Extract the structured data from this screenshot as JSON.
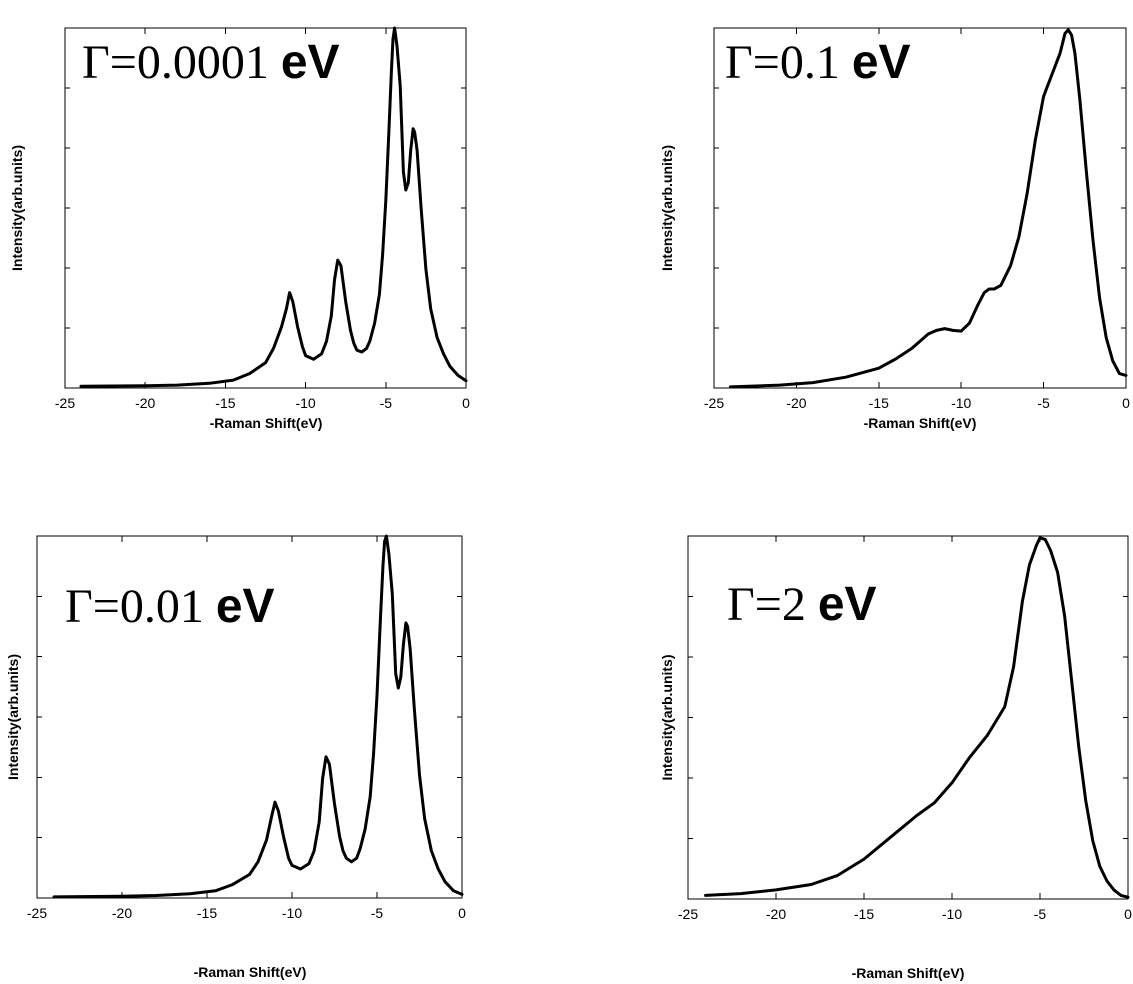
{
  "chart_data": [
    {
      "type": "line",
      "annotation": {
        "symbol": "Γ=0.0001",
        "unit": "eV"
      },
      "xlabel": "-Raman Shift(eV)",
      "ylabel": "Intensity(arb.units)",
      "xlim": [
        -25,
        0
      ],
      "ylim": [
        0,
        1
      ],
      "xticks": [
        -25,
        -20,
        -15,
        -10,
        -5,
        0
      ],
      "series": [
        {
          "x": [
            -24,
            -20,
            -18,
            -16,
            -14.5,
            -13.5,
            -12.5,
            -12,
            -11.5,
            -11.2,
            -11,
            -10.8,
            -10.5,
            -10.2,
            -10,
            -9.5,
            -9,
            -8.7,
            -8.4,
            -8.2,
            -8,
            -7.8,
            -7.5,
            -7.2,
            -7,
            -6.8,
            -6.5,
            -6.2,
            -6,
            -5.7,
            -5.4,
            -5.2,
            -5,
            -4.8,
            -4.65,
            -4.55,
            -4.45,
            -4.3,
            -4.1,
            -3.9,
            -3.75,
            -3.6,
            -3.45,
            -3.3,
            -3.2,
            -3.05,
            -2.8,
            -2.5,
            -2.2,
            -1.8,
            -1.4,
            -1,
            -0.5,
            0
          ],
          "y": [
            0.005,
            0.006,
            0.008,
            0.013,
            0.022,
            0.04,
            0.07,
            0.11,
            0.17,
            0.22,
            0.265,
            0.24,
            0.17,
            0.115,
            0.09,
            0.08,
            0.095,
            0.13,
            0.2,
            0.3,
            0.355,
            0.34,
            0.24,
            0.16,
            0.125,
            0.105,
            0.1,
            0.11,
            0.13,
            0.18,
            0.26,
            0.37,
            0.52,
            0.72,
            0.88,
            0.97,
            1.0,
            0.95,
            0.84,
            0.6,
            0.55,
            0.57,
            0.66,
            0.72,
            0.71,
            0.66,
            0.5,
            0.33,
            0.22,
            0.14,
            0.095,
            0.06,
            0.035,
            0.02
          ]
        }
      ]
    },
    {
      "type": "line",
      "annotation": {
        "symbol": "Γ=0.1",
        "unit": "eV"
      },
      "xlabel": "-Raman Shift(eV)",
      "ylabel": "Intensity(arb.units)",
      "xlim": [
        -25,
        0
      ],
      "ylim": [
        0,
        1
      ],
      "xticks": [
        -25,
        -20,
        -15,
        -10,
        -5,
        0
      ],
      "series": [
        {
          "x": [
            -24,
            -21,
            -19,
            -17,
            -15,
            -14,
            -13,
            -12.5,
            -12,
            -11.5,
            -11,
            -10.5,
            -10,
            -9.5,
            -9,
            -8.6,
            -8.3,
            -8,
            -7.6,
            -7,
            -6.5,
            -6,
            -5.5,
            -5,
            -4.5,
            -4,
            -3.7,
            -3.5,
            -3.3,
            -3.1,
            -2.8,
            -2.4,
            -2,
            -1.6,
            -1.2,
            -0.8,
            -0.4,
            0
          ],
          "y": [
            0.003,
            0.008,
            0.015,
            0.03,
            0.055,
            0.08,
            0.11,
            0.13,
            0.15,
            0.16,
            0.165,
            0.16,
            0.158,
            0.18,
            0.23,
            0.265,
            0.275,
            0.275,
            0.285,
            0.34,
            0.42,
            0.54,
            0.69,
            0.81,
            0.87,
            0.93,
            0.985,
            0.995,
            0.98,
            0.93,
            0.8,
            0.6,
            0.41,
            0.25,
            0.14,
            0.075,
            0.04,
            0.035
          ]
        }
      ]
    },
    {
      "type": "line",
      "annotation": {
        "symbol": "Γ=0.01",
        "unit": "eV"
      },
      "xlabel": "-Raman Shift(eV)",
      "ylabel": "Intensity(arb.units)",
      "xlim": [
        -25,
        0
      ],
      "ylim": [
        0,
        1
      ],
      "xticks": [
        -25,
        -20,
        -15,
        -10,
        -5,
        0
      ],
      "series": [
        {
          "x": [
            -24,
            -20,
            -18,
            -16,
            -14.5,
            -13.5,
            -12.5,
            -12,
            -11.5,
            -11.2,
            -11,
            -10.8,
            -10.5,
            -10.2,
            -10,
            -9.5,
            -9,
            -8.7,
            -8.4,
            -8.2,
            -8,
            -7.8,
            -7.5,
            -7.2,
            -7,
            -6.8,
            -6.5,
            -6.2,
            -6,
            -5.7,
            -5.4,
            -5.2,
            -5,
            -4.8,
            -4.65,
            -4.55,
            -4.45,
            -4.3,
            -4.1,
            -3.9,
            -3.75,
            -3.6,
            -3.45,
            -3.3,
            -3.2,
            -3.05,
            -2.8,
            -2.5,
            -2.2,
            -1.8,
            -1.4,
            -1,
            -0.5,
            0
          ],
          "y": [
            0.003,
            0.005,
            0.007,
            0.012,
            0.02,
            0.037,
            0.065,
            0.1,
            0.16,
            0.225,
            0.265,
            0.24,
            0.17,
            0.11,
            0.09,
            0.08,
            0.095,
            0.13,
            0.21,
            0.33,
            0.39,
            0.37,
            0.26,
            0.17,
            0.13,
            0.11,
            0.1,
            0.11,
            0.135,
            0.19,
            0.28,
            0.4,
            0.56,
            0.77,
            0.92,
            0.985,
            1.0,
            0.95,
            0.84,
            0.62,
            0.58,
            0.61,
            0.7,
            0.76,
            0.75,
            0.69,
            0.52,
            0.34,
            0.22,
            0.13,
            0.08,
            0.045,
            0.02,
            0.01
          ]
        }
      ]
    },
    {
      "type": "line",
      "annotation": {
        "symbol": "Γ=2",
        "unit": "eV"
      },
      "xlabel": "-Raman Shift(eV)",
      "ylabel": "Intensity(arb.units)",
      "xlim": [
        -25,
        0
      ],
      "ylim": [
        0,
        1
      ],
      "xticks": [
        -25,
        -20,
        -15,
        -10,
        -5,
        0
      ],
      "series": [
        {
          "x": [
            -24,
            -22,
            -20,
            -18,
            -16.5,
            -15,
            -13.5,
            -12,
            -11,
            -10,
            -9,
            -8,
            -7,
            -6.5,
            -6,
            -5.6,
            -5.2,
            -5,
            -4.7,
            -4.4,
            -4,
            -3.6,
            -3.2,
            -2.8,
            -2.4,
            -2,
            -1.6,
            -1.2,
            -0.8,
            -0.4,
            0
          ],
          "y": [
            0.01,
            0.015,
            0.025,
            0.04,
            0.065,
            0.11,
            0.17,
            0.23,
            0.265,
            0.32,
            0.39,
            0.45,
            0.53,
            0.64,
            0.82,
            0.92,
            0.975,
            0.995,
            0.99,
            0.96,
            0.9,
            0.78,
            0.6,
            0.42,
            0.27,
            0.16,
            0.09,
            0.05,
            0.025,
            0.01,
            0.005
          ]
        }
      ]
    }
  ]
}
